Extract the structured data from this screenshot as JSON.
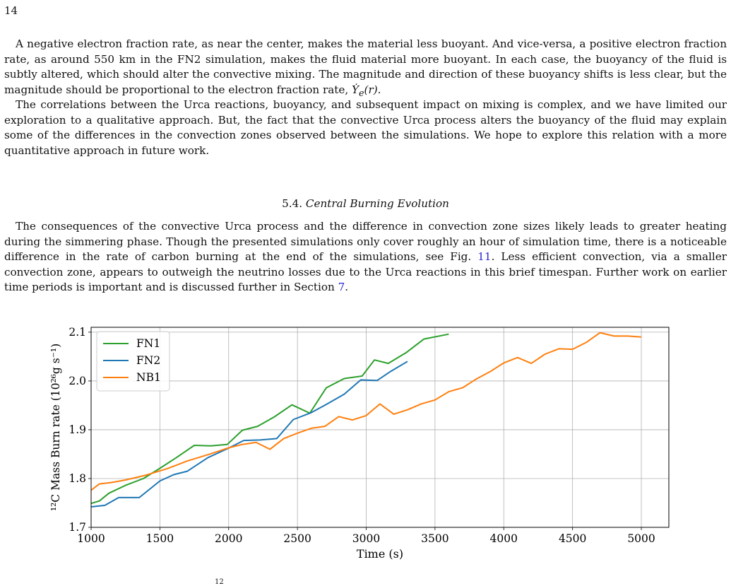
{
  "page": {
    "number": "14"
  },
  "paragraphs": {
    "p1": {
      "text": "A negative electron fraction rate, as near the center, makes the material less buoyant. And vice-versa, a positive electron fraction rate, as around 550 km in the FN2 simulation, makes the fluid material more buoyant. In each case, the buoyancy of the fluid is subtly altered, which should alter the convective mixing. The magnitude and direction of these buoyancy shifts is less clear, but the magnitude should be proportional to the electron fraction rate, ",
      "math": "Ẏ",
      "math_sub": "e",
      "math_tail": "(r)."
    },
    "p2": "The correlations between the Urca reactions, buoyancy, and subsequent impact on mixing is complex, and we have limited our exploration to a qualitative approach. But, the fact that the convective Urca process alters the buoyancy of the fluid may explain some of the differences in the convection zones observed between the simulations. We hope to explore this relation with a more quantitative approach in future work.",
    "p3": {
      "text_a": "The consequences of the convective Urca process and the difference in convection zone sizes likely leads to greater heating during the simmering phase. Though the presented simulations only cover roughly an hour of simulation time, there is a noticeable difference in the rate of carbon burning at the end of the simulations, see Fig. ",
      "fig_ref": "11",
      "text_b": ". Less efficient convection, via a smaller convection zone, appears to outweigh the neutrino losses due to the Urca reactions in this brief timespan. Further work on earlier time periods is important and is discussed further in Section ",
      "sec_ref": "7",
      "text_c": "."
    }
  },
  "section": {
    "number": "5.4.",
    "title": "Central Burning Evolution"
  },
  "caption_fragment": "12",
  "colors": {
    "FN1": "#2ca02c",
    "FN2": "#1f77b4",
    "NB1": "#ff7f0e",
    "link": "#2a2ad0"
  },
  "chart_data": {
    "type": "line",
    "xlabel": "Time (s)",
    "ylabel": "¹²C Mass Burn rate (10²⁶g s⁻¹)",
    "xlim": [
      1000,
      5200
    ],
    "ylim": [
      1.7,
      2.11
    ],
    "xticks": [
      "1000",
      "1500",
      "2000",
      "2500",
      "3000",
      "3500",
      "4000",
      "4500",
      "5000"
    ],
    "yticks": [
      "1.7",
      "1.8",
      "1.9",
      "2.0",
      "2.1"
    ],
    "grid": true,
    "legend_position": "top-left",
    "series": [
      {
        "name": "FN1",
        "color": "#2ca02c",
        "x": [
          1000,
          1060,
          1130,
          1250,
          1380,
          1500,
          1620,
          1750,
          1870,
          1990,
          2100,
          2210,
          2330,
          2460,
          2590,
          2710,
          2840,
          2970,
          3060,
          3160,
          3290,
          3420,
          3600
        ],
        "y": [
          1.749,
          1.754,
          1.77,
          1.786,
          1.8,
          1.821,
          1.843,
          1.868,
          1.867,
          1.87,
          1.899,
          1.907,
          1.926,
          1.951,
          1.934,
          1.986,
          2.005,
          2.01,
          2.043,
          2.036,
          2.058,
          2.086,
          2.096
        ]
      },
      {
        "name": "FN2",
        "color": "#1f77b4",
        "x": [
          1000,
          1100,
          1200,
          1350,
          1500,
          1600,
          1700,
          1850,
          1990,
          2110,
          2230,
          2350,
          2470,
          2600,
          2710,
          2840,
          2960,
          3080,
          3180,
          3300
        ],
        "y": [
          1.742,
          1.745,
          1.761,
          1.761,
          1.795,
          1.808,
          1.815,
          1.843,
          1.861,
          1.878,
          1.879,
          1.882,
          1.921,
          1.935,
          1.952,
          1.973,
          2.002,
          2.001,
          2.02,
          2.04
        ]
      },
      {
        "name": "NB1",
        "color": "#ff7f0e",
        "x": [
          1000,
          1060,
          1150,
          1250,
          1400,
          1550,
          1700,
          1850,
          2000,
          2100,
          2200,
          2300,
          2400,
          2500,
          2600,
          2700,
          2800,
          2900,
          3000,
          3100,
          3200,
          3300,
          3400,
          3500,
          3600,
          3700,
          3800,
          3900,
          4000,
          4100,
          4200,
          4300,
          4400,
          4500,
          4600,
          4700,
          4800,
          4900,
          5000
        ],
        "y": [
          1.776,
          1.789,
          1.792,
          1.797,
          1.807,
          1.82,
          1.836,
          1.849,
          1.863,
          1.87,
          1.874,
          1.86,
          1.882,
          1.893,
          1.903,
          1.907,
          1.927,
          1.92,
          1.929,
          1.953,
          1.932,
          1.941,
          1.953,
          1.961,
          1.978,
          1.986,
          2.004,
          2.019,
          2.037,
          2.048,
          2.036,
          2.055,
          2.066,
          2.065,
          2.079,
          2.099,
          2.092,
          2.092,
          2.09
        ]
      }
    ]
  }
}
